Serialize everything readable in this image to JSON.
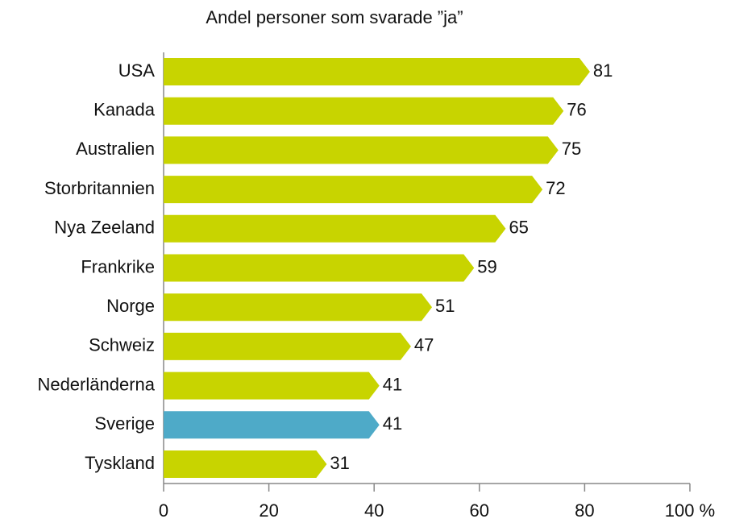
{
  "chart_data": {
    "type": "bar",
    "orientation": "horizontal",
    "title": "Andel personer som svarade ”ja”",
    "categories": [
      "USA",
      "Kanada",
      "Australien",
      "Storbritannien",
      "Nya Zeeland",
      "Frankrike",
      "Norge",
      "Schweiz",
      "Nederländerna",
      "Sverige",
      "Tyskland"
    ],
    "values": [
      81,
      76,
      75,
      72,
      65,
      59,
      51,
      47,
      41,
      41,
      31
    ],
    "colors": [
      "#c8d400",
      "#c8d400",
      "#c8d400",
      "#c8d400",
      "#c8d400",
      "#c8d400",
      "#c8d400",
      "#c8d400",
      "#c8d400",
      "#4eaac8",
      "#c8d400"
    ],
    "xlim": [
      0,
      100
    ],
    "xticks": [
      0,
      20,
      40,
      60,
      80,
      {
        "value": 100,
        "label": "100 %"
      }
    ]
  }
}
